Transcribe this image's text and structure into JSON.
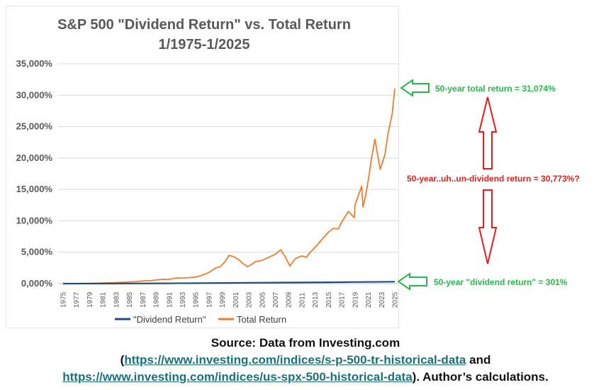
{
  "chart_data": {
    "type": "line",
    "title": "S&P 500 \"Dividend Return\" vs. Total Return",
    "subtitle": "1/1975-1/2025",
    "xlabel": "",
    "ylabel": "",
    "ylim": [
      0,
      35000
    ],
    "yticks": [
      "0,000%",
      "5,000%",
      "10,000%",
      "15,000%",
      "20,000%",
      "25,000%",
      "30,000%",
      "35,000%"
    ],
    "ytick_values": [
      0,
      5000,
      10000,
      15000,
      20000,
      25000,
      30000,
      35000
    ],
    "xlim": [
      1975,
      2025
    ],
    "xticks": [
      "1975",
      "1977",
      "1979",
      "1981",
      "1983",
      "1985",
      "1987",
      "1989",
      "1991",
      "1993",
      "1995",
      "1997",
      "1999",
      "2001",
      "2003",
      "2005",
      "2007",
      "2009",
      "2011",
      "2013",
      "2015",
      "2017",
      "2019",
      "2021",
      "2023",
      "2025"
    ],
    "grid": true,
    "legend_position": "bottom",
    "series": [
      {
        "name": "\"Dividend Return\"",
        "color": "#1f4e79",
        "x": [
          1975,
          1980,
          1985,
          1990,
          1995,
          2000,
          2005,
          2010,
          2015,
          2020,
          2025
        ],
        "y": [
          0,
          10,
          25,
          50,
          80,
          110,
          150,
          180,
          220,
          260,
          301
        ]
      },
      {
        "name": "Total Return",
        "color": "#ed7d31",
        "x": [
          1975,
          1978,
          1980,
          1982,
          1984,
          1986,
          1987.7,
          1988,
          1990,
          1990.8,
          1992,
          1994,
          1995,
          1996,
          1997,
          1998,
          1998.7,
          1999.5,
          2000,
          2000.7,
          2001.5,
          2002,
          2002.8,
          2003.5,
          2004,
          2005,
          2006,
          2007,
          2007.8,
          2008.5,
          2009.2,
          2010,
          2011,
          2011.7,
          2012,
          2013,
          2014,
          2015,
          2015.7,
          2016.5,
          2017,
          2018,
          2018.9,
          2019,
          2020,
          2020.2,
          2020.6,
          2021,
          2021.5,
          2022,
          2022.8,
          2023.5,
          2024,
          2024.6,
          2025
        ],
        "y": [
          0,
          25,
          70,
          120,
          200,
          330,
          500,
          450,
          700,
          650,
          880,
          950,
          1050,
          1350,
          1800,
          2500,
          2700,
          3600,
          4500,
          4300,
          3800,
          3300,
          2700,
          3100,
          3500,
          3700,
          4200,
          4700,
          5400,
          4200,
          2800,
          4000,
          4400,
          4200,
          4700,
          5800,
          7000,
          8200,
          8800,
          8700,
          9800,
          11500,
          10500,
          12500,
          15500,
          12200,
          14000,
          16500,
          20000,
          23000,
          18200,
          20500,
          24000,
          27000,
          31074
        ]
      }
    ],
    "annotations": {
      "total": "50-year total return = 31,074%",
      "difference": "50-year..uh..un-dividend return = 30,773%?",
      "dividend": "50-year \"dividend return\" = 301%"
    },
    "colors": {
      "arrow_green": "#2bb54a",
      "arrow_red": "#e02020",
      "grid": "#d9d9d9"
    }
  },
  "source": {
    "line1": "Source: Data from Investing.com",
    "open_paren": "(",
    "link1": "https://www.investing.com/indices/s-p-500-tr-historical-data",
    "and": " and",
    "link2": "https://www.investing.com/indices/us-spx-500-historical-data",
    "tail": "). Author’s calculations."
  }
}
